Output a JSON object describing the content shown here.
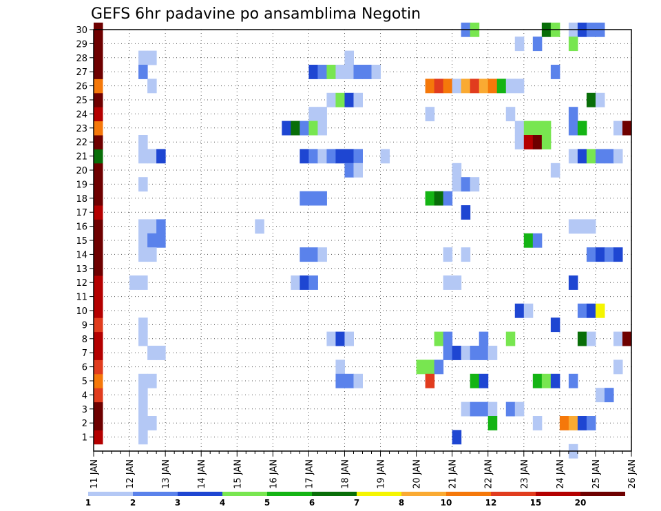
{
  "chart_data": {
    "type": "heatmap",
    "title": "GEFS 6hr padavine po ansamblima Negotin",
    "x_tick_labels": [
      "11 JAN",
      "12 JAN",
      "13 JAN",
      "14 JAN",
      "15 JAN",
      "16 JAN",
      "17 JAN",
      "18 JAN",
      "19 JAN",
      "20 JAN",
      "21 JAN",
      "22 JAN",
      "23 JAN",
      "24 JAN",
      "25 JAN",
      "26 JAN"
    ],
    "y_tick_labels": [
      "1",
      "2",
      "3",
      "4",
      "5",
      "6",
      "7",
      "8",
      "9",
      "10",
      "11",
      "12",
      "13",
      "14",
      "15",
      "16",
      "17",
      "18",
      "19",
      "20",
      "21",
      "22",
      "23",
      "24",
      "25",
      "26",
      "27",
      "28",
      "29",
      "30"
    ],
    "xlim": [
      "11 JAN 00Z",
      "26 JAN 00Z"
    ],
    "ylim": [
      0,
      30
    ],
    "grid": true,
    "time_step": "6hr",
    "legend": {
      "placement": "bottom",
      "labels": [
        "1",
        "2",
        "3",
        "4",
        "5",
        "6",
        "7",
        "8",
        "10",
        "12",
        "15",
        "20"
      ],
      "bin_colors": [
        "#b4c8f5",
        "#5a82eb",
        "#1e46d2",
        "#78e650",
        "#14b414",
        "#086e08",
        "#f5f500",
        "#faaa32",
        "#f5780a",
        "#e13c1e",
        "#b40000",
        "#6e0000"
      ]
    },
    "cells": [
      [
        30,
        10.25,
        2
      ],
      [
        30,
        10.5,
        4
      ],
      [
        30,
        12.5,
        6
      ],
      [
        30,
        12.75,
        4
      ],
      [
        30,
        13.25,
        1
      ],
      [
        30,
        13.5,
        3
      ],
      [
        30,
        13.75,
        2
      ],
      [
        30,
        14,
        2
      ],
      [
        29,
        11.75,
        1
      ],
      [
        29,
        12.25,
        2
      ],
      [
        29,
        13.25,
        4
      ],
      [
        28,
        1.25,
        1
      ],
      [
        28,
        1.5,
        1
      ],
      [
        28,
        7,
        1
      ],
      [
        27,
        1.25,
        2
      ],
      [
        27,
        6,
        3
      ],
      [
        27,
        6.25,
        2
      ],
      [
        27,
        6.5,
        4
      ],
      [
        27,
        6.75,
        1
      ],
      [
        27,
        7,
        1
      ],
      [
        27,
        7.25,
        2
      ],
      [
        27,
        7.5,
        2
      ],
      [
        27,
        7.75,
        1
      ],
      [
        27,
        12.75,
        2
      ],
      [
        26,
        1.5,
        1
      ],
      [
        26,
        9.25,
        9
      ],
      [
        26,
        9.5,
        10
      ],
      [
        26,
        9.75,
        9
      ],
      [
        26,
        10,
        1
      ],
      [
        26,
        10.25,
        8
      ],
      [
        26,
        10.5,
        10
      ],
      [
        26,
        10.75,
        8
      ],
      [
        26,
        11,
        9
      ],
      [
        26,
        11.25,
        5
      ],
      [
        26,
        11.5,
        1
      ],
      [
        26,
        11.75,
        1
      ],
      [
        25,
        6.5,
        1
      ],
      [
        25,
        6.75,
        4
      ],
      [
        25,
        7,
        3
      ],
      [
        25,
        7.25,
        1
      ],
      [
        25,
        13.75,
        6
      ],
      [
        25,
        14,
        1
      ],
      [
        24,
        6,
        1
      ],
      [
        24,
        6.25,
        1
      ],
      [
        24,
        9.25,
        1
      ],
      [
        24,
        11.5,
        1
      ],
      [
        24,
        13.25,
        2
      ],
      [
        23,
        5.25,
        3
      ],
      [
        23,
        5.5,
        6
      ],
      [
        23,
        5.75,
        2
      ],
      [
        23,
        6,
        4
      ],
      [
        23,
        6.25,
        1
      ],
      [
        23,
        11.75,
        1
      ],
      [
        23,
        12,
        4
      ],
      [
        23,
        12.25,
        4
      ],
      [
        23,
        12.5,
        4
      ],
      [
        23,
        13.25,
        2
      ],
      [
        23,
        13.5,
        5
      ],
      [
        23,
        14.5,
        1
      ],
      [
        23,
        14.75,
        13
      ],
      [
        22,
        1.25,
        1
      ],
      [
        22,
        11.75,
        1
      ],
      [
        22,
        12,
        11
      ],
      [
        22,
        12.25,
        12
      ],
      [
        22,
        12.5,
        4
      ],
      [
        21,
        1.25,
        1
      ],
      [
        21,
        1.5,
        1
      ],
      [
        21,
        1.75,
        3
      ],
      [
        21,
        5.75,
        3
      ],
      [
        21,
        6,
        2
      ],
      [
        21,
        6.25,
        1
      ],
      [
        21,
        6.5,
        2
      ],
      [
        21,
        6.75,
        3
      ],
      [
        21,
        7,
        3
      ],
      [
        21,
        7.25,
        2
      ],
      [
        21,
        8,
        1
      ],
      [
        21,
        13.25,
        1
      ],
      [
        21,
        13.5,
        3
      ],
      [
        21,
        13.75,
        4
      ],
      [
        21,
        14,
        2
      ],
      [
        21,
        14.25,
        2
      ],
      [
        21,
        14.5,
        1
      ],
      [
        20,
        7,
        2
      ],
      [
        20,
        7.25,
        1
      ],
      [
        20,
        10,
        1
      ],
      [
        20,
        12.75,
        1
      ],
      [
        19,
        1.25,
        1
      ],
      [
        19,
        10,
        1
      ],
      [
        19,
        10.25,
        2
      ],
      [
        19,
        10.5,
        1
      ],
      [
        18,
        5.75,
        2
      ],
      [
        18,
        6,
        2
      ],
      [
        18,
        6.25,
        2
      ],
      [
        18,
        9.25,
        5
      ],
      [
        18,
        9.5,
        6
      ],
      [
        18,
        9.75,
        2
      ],
      [
        17,
        10.25,
        3
      ],
      [
        16,
        1.25,
        1
      ],
      [
        16,
        1.5,
        1
      ],
      [
        16,
        1.75,
        2
      ],
      [
        16,
        4.5,
        1
      ],
      [
        16,
        13.25,
        1
      ],
      [
        16,
        13.5,
        1
      ],
      [
        16,
        13.75,
        1
      ],
      [
        15,
        1.25,
        1
      ],
      [
        15,
        1.5,
        2
      ],
      [
        15,
        1.75,
        2
      ],
      [
        15,
        12,
        5
      ],
      [
        15,
        12.25,
        2
      ],
      [
        14,
        1.25,
        1
      ],
      [
        14,
        1.5,
        1
      ],
      [
        14,
        5.75,
        2
      ],
      [
        14,
        6,
        2
      ],
      [
        14,
        6.25,
        1
      ],
      [
        14,
        9.75,
        1
      ],
      [
        14,
        10.25,
        1
      ],
      [
        14,
        13.75,
        2
      ],
      [
        14,
        14,
        3
      ],
      [
        14,
        14.25,
        2
      ],
      [
        14,
        14.5,
        3
      ],
      [
        12,
        1,
        1
      ],
      [
        12,
        1.25,
        1
      ],
      [
        12,
        5.5,
        1
      ],
      [
        12,
        5.75,
        3
      ],
      [
        12,
        6,
        2
      ],
      [
        12,
        9.75,
        1
      ],
      [
        12,
        10,
        1
      ],
      [
        12,
        13.25,
        3
      ],
      [
        10,
        11.75,
        3
      ],
      [
        10,
        12,
        1
      ],
      [
        10,
        13.5,
        2
      ],
      [
        10,
        13.75,
        3
      ],
      [
        10,
        14,
        7
      ],
      [
        9,
        1.25,
        1
      ],
      [
        9,
        12.75,
        3
      ],
      [
        8,
        1.25,
        1
      ],
      [
        8,
        6.5,
        1
      ],
      [
        8,
        6.75,
        3
      ],
      [
        8,
        7,
        1
      ],
      [
        8,
        9.5,
        4
      ],
      [
        8,
        9.75,
        2
      ],
      [
        8,
        10.75,
        2
      ],
      [
        8,
        11.5,
        4
      ],
      [
        8,
        13.5,
        6
      ],
      [
        8,
        13.75,
        1
      ],
      [
        8,
        14.5,
        1
      ],
      [
        8,
        14.75,
        13
      ],
      [
        7,
        1.5,
        1
      ],
      [
        7,
        1.75,
        1
      ],
      [
        7,
        9.75,
        2
      ],
      [
        7,
        10,
        3
      ],
      [
        7,
        10.25,
        1
      ],
      [
        7,
        10.5,
        2
      ],
      [
        7,
        10.75,
        2
      ],
      [
        7,
        11,
        1
      ],
      [
        6,
        6.75,
        1
      ],
      [
        6,
        9,
        4
      ],
      [
        6,
        9.25,
        4
      ],
      [
        6,
        9.5,
        2
      ],
      [
        6,
        14.5,
        1
      ],
      [
        5,
        1.25,
        1
      ],
      [
        5,
        1.5,
        1
      ],
      [
        5,
        6.75,
        2
      ],
      [
        5,
        7,
        2
      ],
      [
        5,
        7.25,
        1
      ],
      [
        5,
        9.25,
        10
      ],
      [
        5,
        10.5,
        5
      ],
      [
        5,
        10.75,
        3
      ],
      [
        5,
        12.25,
        5
      ],
      [
        5,
        12.5,
        4
      ],
      [
        5,
        12.75,
        3
      ],
      [
        5,
        13.25,
        2
      ],
      [
        4,
        1.25,
        1
      ],
      [
        4,
        14,
        1
      ],
      [
        4,
        14.25,
        2
      ],
      [
        3,
        1.25,
        1
      ],
      [
        3,
        10.25,
        1
      ],
      [
        3,
        10.5,
        2
      ],
      [
        3,
        10.75,
        2
      ],
      [
        3,
        11,
        1
      ],
      [
        3,
        11.5,
        2
      ],
      [
        3,
        11.75,
        1
      ],
      [
        2,
        1.25,
        1
      ],
      [
        2,
        1.5,
        1
      ],
      [
        2,
        11,
        5
      ],
      [
        2,
        12.25,
        1
      ],
      [
        2,
        13,
        9
      ],
      [
        2,
        13.25,
        8
      ],
      [
        2,
        13.5,
        3
      ],
      [
        2,
        13.75,
        2
      ],
      [
        1,
        1.25,
        1
      ],
      [
        1,
        10,
        3
      ],
      [
        0,
        13.25,
        1
      ]
    ],
    "column_11jan": [
      11,
      12,
      13,
      10,
      9,
      10,
      11,
      11,
      10,
      11,
      11,
      11,
      12,
      12,
      12,
      12,
      11,
      12,
      12,
      12,
      6,
      12,
      9,
      11,
      12,
      9,
      12,
      13,
      12,
      12
    ]
  }
}
